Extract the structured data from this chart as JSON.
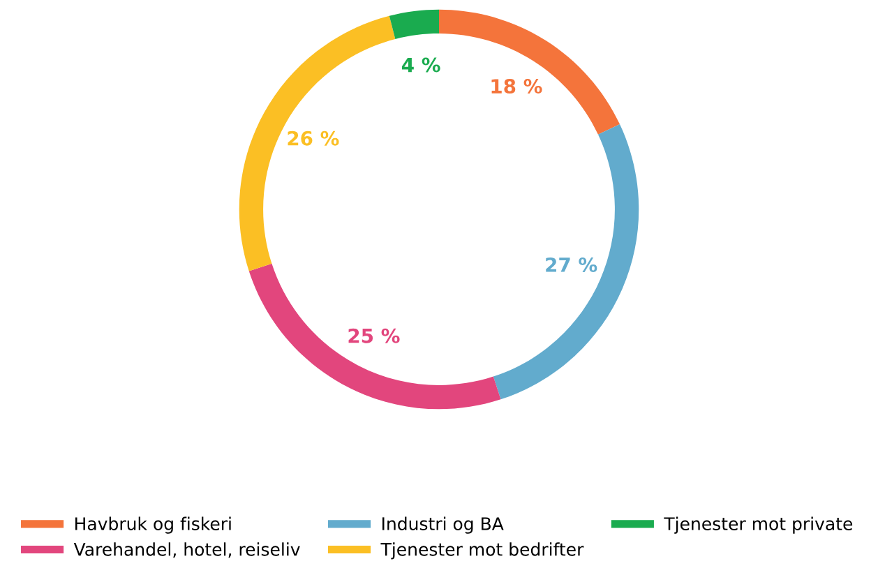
{
  "chart_data": {
    "type": "donut",
    "categories": [
      "Havbruk og fiskeri",
      "Industri og BA",
      "Varehandel, hotel, reiseliv",
      "Tjenester mot bedrifter",
      "Tjenester mot private"
    ],
    "values": [
      18,
      27,
      25,
      26,
      4
    ],
    "value_labels": [
      "18 %",
      "27 %",
      "25 %",
      "26 %",
      "4 %"
    ],
    "colors": [
      "#f4743b",
      "#62abcd",
      "#e2467d",
      "#fbbf24",
      "#1aab4f"
    ],
    "legend": "bottom"
  }
}
